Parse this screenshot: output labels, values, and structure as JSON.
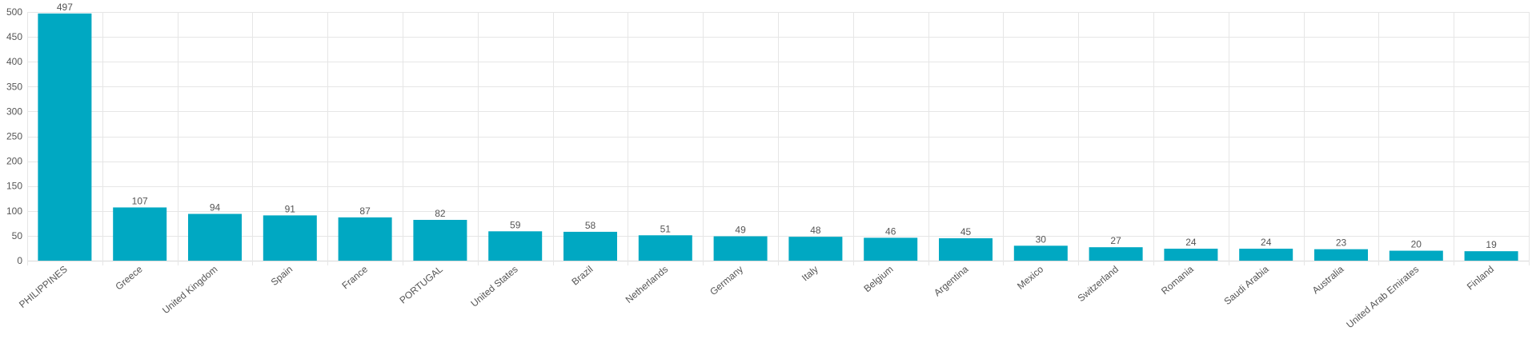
{
  "chart_data": {
    "type": "bar",
    "categories": [
      "PHILIPPINES",
      "Greece",
      "United Kingdom",
      "Spain",
      "France",
      "PORTUGAL",
      "United States",
      "Brazil",
      "Netherlands",
      "Germany",
      "Italy",
      "Belgium",
      "Argentina",
      "Mexico",
      "Switzerland",
      "Romania",
      "Saudi Arabia",
      "Australia",
      "United Arab Emirates",
      "Finland"
    ],
    "values": [
      497,
      107,
      94,
      91,
      87,
      82,
      59,
      58,
      51,
      49,
      48,
      46,
      45,
      30,
      27,
      24,
      24,
      23,
      20,
      19
    ],
    "data_labels": [
      "497",
      "107",
      "94",
      "91",
      "87",
      "82",
      "59",
      "58",
      "51",
      "49",
      "48",
      "46",
      "45",
      "30",
      "27",
      "24",
      "24",
      "23",
      "20",
      "19"
    ],
    "yticks": [
      0,
      50,
      100,
      150,
      200,
      250,
      300,
      350,
      400,
      450,
      500
    ],
    "ylim": [
      0,
      500
    ],
    "grid": true,
    "legend": "none",
    "bar_color": "#00a8c2"
  }
}
